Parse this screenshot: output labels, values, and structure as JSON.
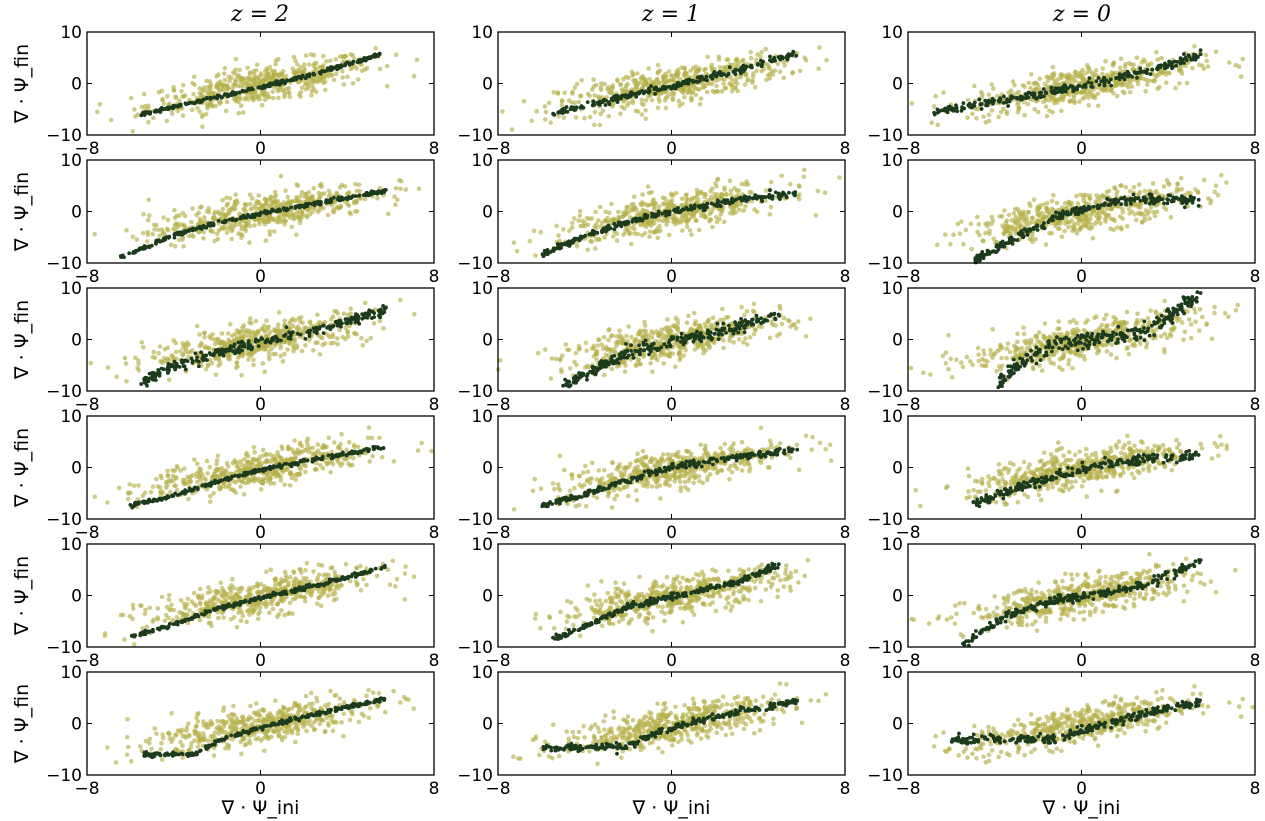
{
  "figure": {
    "column_titles": [
      "z = 2",
      "z = 1",
      "z = 0"
    ],
    "ylabel": "∇ · Ψ_fin",
    "xlabel": "∇ · Ψ_ini"
  },
  "chart_data": {
    "type": "scatter",
    "grid": false,
    "legend": "none",
    "xlim": [
      -8,
      8
    ],
    "ylim": [
      -10,
      10
    ],
    "xticks": [
      -8,
      0,
      8
    ],
    "yticks": [
      -10,
      0,
      10
    ],
    "xlabel": "∇ · Ψ_ini",
    "ylabel": "∇ · Ψ_fin",
    "colors": {
      "simulation": "#b5b04a",
      "model": "#1c3a1c"
    },
    "panels": [
      {
        "row": 1,
        "column": "z = 2",
        "model_curve": [
          [
            -5.5,
            -6
          ],
          [
            -3,
            -3.6
          ],
          [
            0,
            -0.8
          ],
          [
            3,
            2.4
          ],
          [
            5.5,
            5.6
          ]
        ]
      },
      {
        "row": 1,
        "column": "z = 1",
        "model_curve": [
          [
            -5.5,
            -6
          ],
          [
            -3,
            -3.4
          ],
          [
            0,
            -0.6
          ],
          [
            3,
            2.6
          ],
          [
            5.8,
            5.8
          ]
        ]
      },
      {
        "row": 1,
        "column": "z = 0",
        "model_curve": [
          [
            -6.8,
            -5.5
          ],
          [
            -3,
            -3
          ],
          [
            0,
            -0.4
          ],
          [
            3,
            2.4
          ],
          [
            5.5,
            5.6
          ]
        ]
      },
      {
        "row": 2,
        "column": "z = 2",
        "model_curve": [
          [
            -6.5,
            -9
          ],
          [
            -4,
            -4.6
          ],
          [
            -2,
            -2.2
          ],
          [
            0,
            -0.4
          ],
          [
            3,
            1.9
          ],
          [
            5.8,
            4
          ]
        ]
      },
      {
        "row": 2,
        "column": "z = 1",
        "model_curve": [
          [
            -6,
            -8.4
          ],
          [
            -4,
            -4.8
          ],
          [
            -2,
            -2
          ],
          [
            0,
            0
          ],
          [
            3,
            2.2
          ],
          [
            5.8,
            3.4
          ]
        ]
      },
      {
        "row": 2,
        "column": "z = 0",
        "model_curve": [
          [
            -5,
            -9.6
          ],
          [
            -3,
            -5
          ],
          [
            -1,
            -1
          ],
          [
            1,
            1.5
          ],
          [
            3,
            2.6
          ],
          [
            5.5,
            1.8
          ]
        ]
      },
      {
        "row": 3,
        "column": "z = 2",
        "model_curve": [
          [
            -5.5,
            -8.4
          ],
          [
            -4,
            -5.2
          ],
          [
            -2,
            -2.6
          ],
          [
            0,
            -0.6
          ],
          [
            3,
            2.2
          ],
          [
            5.8,
            5.8
          ]
        ]
      },
      {
        "row": 3,
        "column": "z = 1",
        "model_curve": [
          [
            -5,
            -9
          ],
          [
            -3.5,
            -5.5
          ],
          [
            -2,
            -2.4
          ],
          [
            0,
            -0.6
          ],
          [
            3,
            2.2
          ],
          [
            5,
            5.2
          ]
        ]
      },
      {
        "row": 3,
        "column": "z = 0",
        "model_curve": [
          [
            -4,
            -9.5
          ],
          [
            -3,
            -5
          ],
          [
            -1,
            -0.5
          ],
          [
            1,
            0.2
          ],
          [
            3,
            1.6
          ],
          [
            5.5,
            8.6
          ]
        ]
      },
      {
        "row": 4,
        "column": "z = 2",
        "model_curve": [
          [
            -6,
            -7.4
          ],
          [
            -4,
            -5.4
          ],
          [
            -2,
            -2.8
          ],
          [
            0,
            -0.4
          ],
          [
            3,
            1.9
          ],
          [
            5.8,
            4
          ]
        ]
      },
      {
        "row": 4,
        "column": "z = 1",
        "model_curve": [
          [
            -6,
            -7.6
          ],
          [
            -4,
            -5.2
          ],
          [
            -2,
            -2.4
          ],
          [
            0,
            0
          ],
          [
            3,
            2
          ],
          [
            5.8,
            3.4
          ]
        ]
      },
      {
        "row": 4,
        "column": "z = 0",
        "model_curve": [
          [
            -5,
            -7
          ],
          [
            -3,
            -4
          ],
          [
            -1,
            -1.4
          ],
          [
            1,
            0.6
          ],
          [
            3,
            1.6
          ],
          [
            5.5,
            2.2
          ]
        ]
      },
      {
        "row": 5,
        "column": "z = 2",
        "model_curve": [
          [
            -6,
            -8
          ],
          [
            -4,
            -5.6
          ],
          [
            -2,
            -2.6
          ],
          [
            0,
            -0.4
          ],
          [
            3,
            2.4
          ],
          [
            5.8,
            5.6
          ]
        ]
      },
      {
        "row": 5,
        "column": "z = 1",
        "model_curve": [
          [
            -5.5,
            -8.6
          ],
          [
            -3.5,
            -5
          ],
          [
            -2,
            -2.2
          ],
          [
            0,
            -0.2
          ],
          [
            3,
            2.6
          ],
          [
            5,
            6
          ]
        ]
      },
      {
        "row": 5,
        "column": "z = 0",
        "model_curve": [
          [
            -5.5,
            -9.6
          ],
          [
            -3.5,
            -4
          ],
          [
            -1,
            -0.8
          ],
          [
            1,
            0.4
          ],
          [
            3,
            2.2
          ],
          [
            5.5,
            6.8
          ]
        ]
      },
      {
        "row": 6,
        "column": "z = 2",
        "model_curve": [
          [
            -5.5,
            -6
          ],
          [
            -3,
            -6
          ],
          [
            -2,
            -3.4
          ],
          [
            0,
            -0.8
          ],
          [
            3,
            2.2
          ],
          [
            5.8,
            4.8
          ]
        ]
      },
      {
        "row": 6,
        "column": "z = 1",
        "model_curve": [
          [
            -6,
            -4.8
          ],
          [
            -2,
            -4.4
          ],
          [
            -1,
            -2.4
          ],
          [
            0,
            -0.8
          ],
          [
            3,
            2.2
          ],
          [
            5.8,
            4.4
          ]
        ]
      },
      {
        "row": 6,
        "column": "z = 0",
        "model_curve": [
          [
            -6,
            -3.2
          ],
          [
            -1,
            -3
          ],
          [
            0,
            -1.4
          ],
          [
            1,
            0
          ],
          [
            3,
            2
          ],
          [
            5.5,
            4.2
          ]
        ]
      }
    ]
  }
}
